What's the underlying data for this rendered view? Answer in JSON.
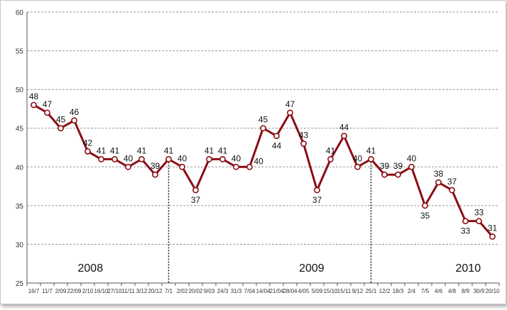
{
  "chart_data": {
    "type": "line",
    "title": "",
    "xlabel": "",
    "ylabel": "",
    "ylim": [
      25,
      60
    ],
    "yticks": [
      25,
      30,
      35,
      40,
      45,
      50,
      55,
      60
    ],
    "grid": true,
    "legend": "none",
    "colors": {
      "line": "#8b0d12",
      "marker_fill": "#ffffff",
      "grid": "#999999",
      "axis": "#555555"
    },
    "categories": [
      "16/7",
      "11/7",
      "2/09",
      "22/09",
      "2/10",
      "16/10",
      "27/10",
      "11/11",
      "3/12",
      "20/12",
      "7/1",
      "2/02",
      "20/02",
      "9/03",
      "24/3",
      "31/3",
      "7/04",
      "14/04",
      "21/04",
      "28/04",
      "4/05",
      "5/09",
      "15/10",
      "15/11",
      "9/12",
      "25/1",
      "12/2",
      "18/3",
      "2/4",
      "7/5",
      "4/6",
      "4/8",
      "8/9",
      "30/9",
      "20/10"
    ],
    "series": [
      {
        "values": [
          48,
          47,
          45,
          46,
          42,
          41,
          41,
          40,
          41,
          39,
          41,
          40,
          37,
          41,
          41,
          40,
          40,
          45,
          44,
          47,
          43,
          37,
          41,
          44,
          40,
          41,
          39,
          39,
          40,
          35,
          38,
          37,
          33,
          33,
          31
        ]
      }
    ],
    "label_positions": [
      "above",
      "above",
      "above",
      "above",
      "above",
      "above",
      "above",
      "above",
      "above",
      "above",
      "above",
      "above",
      "below",
      "above",
      "above",
      "above",
      "right",
      "above",
      "below",
      "above",
      "above",
      "below",
      "above",
      "above",
      "above",
      "above",
      "above",
      "above",
      "above",
      "below",
      "above",
      "above",
      "below",
      "above",
      "above"
    ],
    "dividers_after_index": [
      10,
      25
    ],
    "period_labels": [
      {
        "text": "2008",
        "index": 4.2
      },
      {
        "text": "2009",
        "index": 20.6
      },
      {
        "text": "2010",
        "index": 32.2
      }
    ]
  }
}
